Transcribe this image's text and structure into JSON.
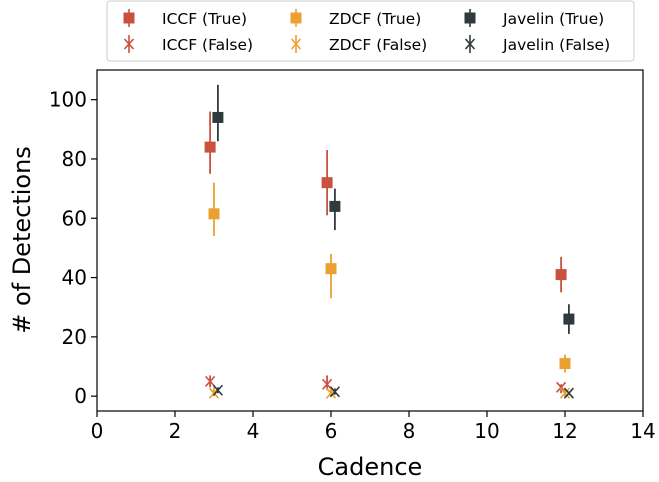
{
  "chart_data": {
    "type": "scatter",
    "title": "",
    "xlabel": "Cadence",
    "ylabel": "# of Detections",
    "xlim": [
      0,
      14
    ],
    "ylim": [
      -5,
      110
    ],
    "xticks": [
      0,
      2,
      4,
      6,
      8,
      10,
      12,
      14
    ],
    "yticks": [
      0,
      20,
      40,
      60,
      80,
      100
    ],
    "xtick_labels": [
      "0",
      "2",
      "4",
      "6",
      "8",
      "10",
      "12",
      "14"
    ],
    "ytick_labels": [
      "0",
      "20",
      "40",
      "60",
      "80",
      "100"
    ],
    "grid": false,
    "legend_position": "top, above plot, 3 columns",
    "series": [
      {
        "name": "ICCF (True)",
        "color": "#c9513d",
        "marker": "square",
        "points": [
          {
            "x": 2.9,
            "y": 84,
            "ylo": 75,
            "yhi": 96
          },
          {
            "x": 5.9,
            "y": 72,
            "ylo": 61,
            "yhi": 83
          },
          {
            "x": 11.9,
            "y": 41,
            "ylo": 35,
            "yhi": 47
          }
        ]
      },
      {
        "name": "ICCF (False)",
        "color": "#c9513d",
        "marker": "x",
        "points": [
          {
            "x": 2.9,
            "y": 5,
            "ylo": 3,
            "yhi": 7
          },
          {
            "x": 5.9,
            "y": 4,
            "ylo": 2,
            "yhi": 7
          },
          {
            "x": 11.9,
            "y": 3,
            "ylo": 1,
            "yhi": 4
          }
        ]
      },
      {
        "name": "ZDCF (True)",
        "color": "#eba131",
        "marker": "square",
        "points": [
          {
            "x": 3.0,
            "y": 61.5,
            "ylo": 54,
            "yhi": 72
          },
          {
            "x": 6.0,
            "y": 43,
            "ylo": 33,
            "yhi": 48
          },
          {
            "x": 12.0,
            "y": 11,
            "ylo": 8,
            "yhi": 14
          }
        ]
      },
      {
        "name": "ZDCF (False)",
        "color": "#eba131",
        "marker": "x",
        "points": [
          {
            "x": 3.0,
            "y": 1,
            "ylo": 0,
            "yhi": 3
          },
          {
            "x": 6.0,
            "y": 1,
            "ylo": 0,
            "yhi": 3
          },
          {
            "x": 12.0,
            "y": 1,
            "ylo": 0,
            "yhi": 2
          }
        ]
      },
      {
        "name": "Javelin (True)",
        "color": "#2e3a3e",
        "marker": "square",
        "points": [
          {
            "x": 3.1,
            "y": 94,
            "ylo": 86,
            "yhi": 105
          },
          {
            "x": 6.1,
            "y": 64,
            "ylo": 56,
            "yhi": 70
          },
          {
            "x": 12.1,
            "y": 26,
            "ylo": 21,
            "yhi": 31
          }
        ]
      },
      {
        "name": "Javelin (False)",
        "color": "#2e3a3e",
        "marker": "x",
        "points": [
          {
            "x": 3.1,
            "y": 2,
            "ylo": 1,
            "yhi": 3
          },
          {
            "x": 6.1,
            "y": 1.5,
            "ylo": 0.5,
            "yhi": 2.5
          },
          {
            "x": 12.1,
            "y": 1,
            "ylo": 0.5,
            "yhi": 1.5
          }
        ]
      }
    ]
  }
}
